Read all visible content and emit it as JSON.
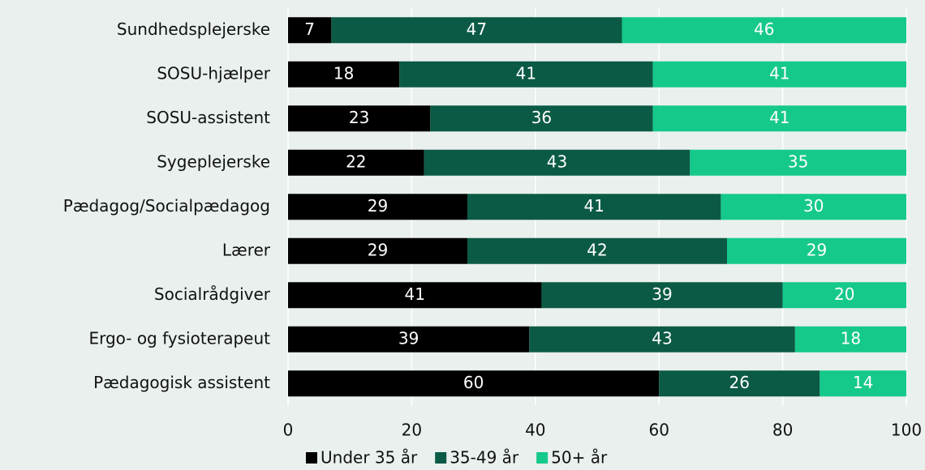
{
  "chart_data": {
    "type": "bar",
    "orientation": "horizontal",
    "stacked": true,
    "categories": [
      "Sundhedsplejerske",
      "SOSU-hjælper",
      "SOSU-assistent",
      "Sygeplejerske",
      "Pædagog/Socialpædagog",
      "Lærer",
      "Socialrådgiver",
      "Ergo- og fysioterapeut",
      "Pædagogisk assistent"
    ],
    "series": [
      {
        "name": "Under 35 år",
        "color": "#000000",
        "values": [
          7,
          18,
          23,
          22,
          29,
          29,
          41,
          39,
          60
        ]
      },
      {
        "name": "35-49 år",
        "color": "#0b5a45",
        "values": [
          47,
          41,
          36,
          43,
          41,
          42,
          39,
          43,
          26
        ]
      },
      {
        "name": "50+ år",
        "color": "#15c98a",
        "values": [
          46,
          41,
          41,
          35,
          30,
          29,
          20,
          18,
          14
        ]
      }
    ],
    "xlim": [
      0,
      100
    ],
    "xticks": [
      0,
      20,
      40,
      60,
      80,
      100
    ],
    "grid": true,
    "legend": "bottom"
  }
}
